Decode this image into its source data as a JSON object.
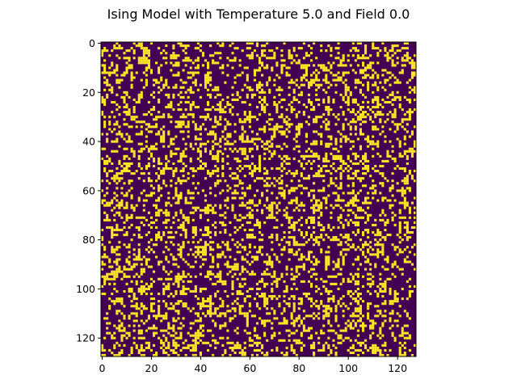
{
  "chart_data": {
    "type": "heatmap",
    "title": "Ising Model with Temperature 5.0 and Field 0.0",
    "xlabel": "",
    "ylabel": "",
    "grid_size": [
      128,
      128
    ],
    "xlim": [
      -0.5,
      127.5
    ],
    "ylim": [
      127.5,
      -0.5
    ],
    "x_ticks": [
      0,
      20,
      40,
      60,
      80,
      100,
      120
    ],
    "y_ticks": [
      0,
      20,
      40,
      60,
      80,
      100,
      120
    ],
    "value_colors": {
      "-1": "#440154",
      "1": "#fde725"
    },
    "values_note": "",
    "grid": false,
    "colormap": "viridis"
  }
}
